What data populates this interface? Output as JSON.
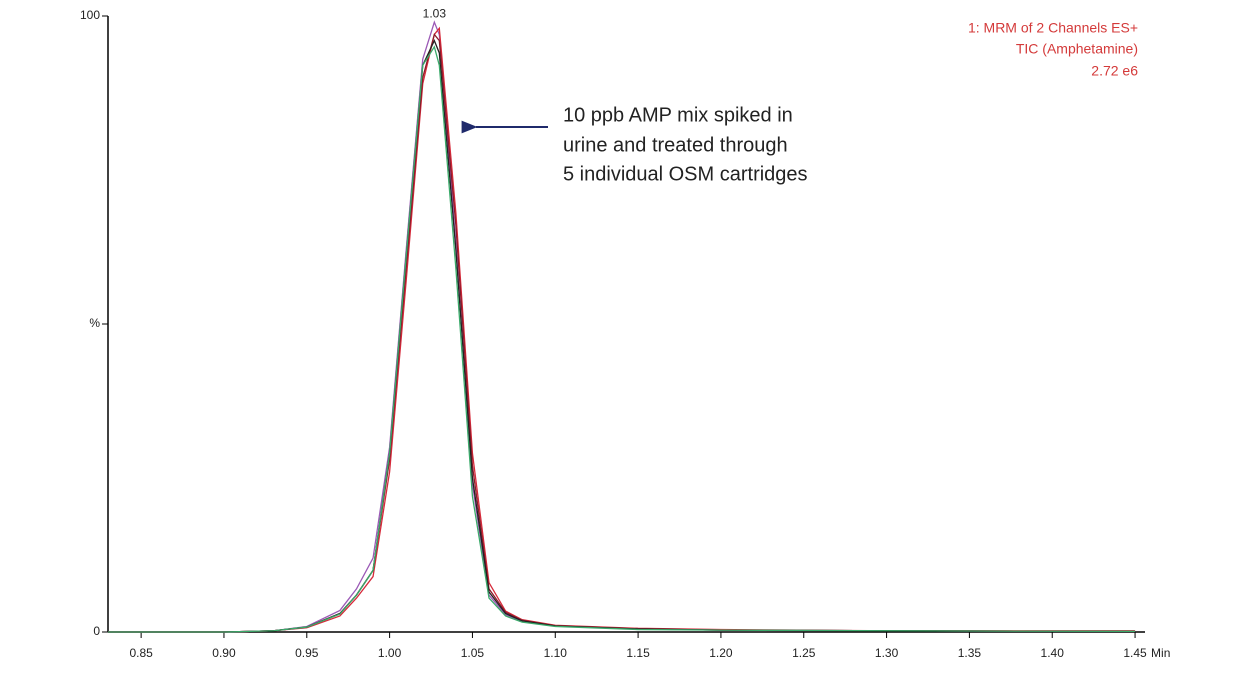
{
  "chart_data": {
    "type": "line",
    "x_unit": "Min",
    "peak_label": "1.03",
    "info_lines": [
      "1: MRM of 2 Channels ES+",
      "TIC (Amphetamine)",
      "2.72 e6"
    ],
    "annotation": [
      "10 ppb AMP mix spiked in",
      "urine and treated through",
      "5 individual OSM cartridges"
    ],
    "x": [
      0.83,
      0.9,
      0.93,
      0.95,
      0.97,
      0.98,
      0.99,
      1.0,
      1.01,
      1.02,
      1.027,
      1.03,
      1.04,
      1.05,
      1.06,
      1.07,
      1.08,
      1.1,
      1.15,
      1.2,
      1.3,
      1.45
    ],
    "series": [
      {
        "color": "#9b59b6",
        "values": [
          0,
          0,
          0.2,
          0.9,
          3.5,
          7,
          12,
          30,
          62,
          93,
          99,
          97,
          63,
          24,
          6,
          2.8,
          1.7,
          1,
          0.5,
          0.3,
          0.2,
          0.1
        ]
      },
      {
        "color": "#d62a3a",
        "values": [
          0,
          0,
          0.2,
          0.7,
          2.6,
          5.5,
          9,
          26,
          57,
          89,
          97,
          98,
          68,
          29,
          8,
          3.4,
          2,
          1.1,
          0.6,
          0.4,
          0.2,
          0.2
        ]
      },
      {
        "color": "#8b1a2a",
        "values": [
          0,
          0,
          0.2,
          0.8,
          3,
          6,
          10,
          28,
          59,
          90,
          97,
          96,
          66,
          27,
          7,
          3.2,
          1.9,
          1,
          0.5,
          0.3,
          0.2,
          0.1
        ]
      },
      {
        "color": "#222222",
        "values": [
          0,
          0,
          0.2,
          0.8,
          3,
          6,
          10,
          29,
          61,
          92,
          96,
          94,
          62,
          25,
          6.5,
          3,
          1.8,
          1,
          0.5,
          0.3,
          0.2,
          0.1
        ]
      },
      {
        "color": "#3aaa6a",
        "values": [
          0,
          0,
          0.2,
          0.8,
          2.9,
          6,
          10,
          29,
          61,
          92,
          95,
          92,
          59,
          22,
          5.5,
          2.6,
          1.6,
          0.9,
          0.4,
          0.3,
          0.2,
          0.1
        ]
      }
    ],
    "xlim": [
      0.83,
      1.456
    ],
    "ylim": [
      0,
      100
    ],
    "xticks": [
      0.85,
      {
        "value": 0.9,
        "label": "0.90"
      },
      0.95,
      {
        "value": 1.0,
        "label": "1.00"
      },
      1.05,
      {
        "value": 1.1,
        "label": "1.10"
      },
      1.15,
      {
        "value": 1.2,
        "label": "1.20"
      },
      1.25,
      {
        "value": 1.3,
        "label": "1.30"
      },
      1.35,
      {
        "value": 1.4,
        "label": "1.40"
      },
      1.45
    ],
    "yticks": [
      0,
      {
        "value": 50,
        "label": "%"
      },
      100
    ]
  }
}
